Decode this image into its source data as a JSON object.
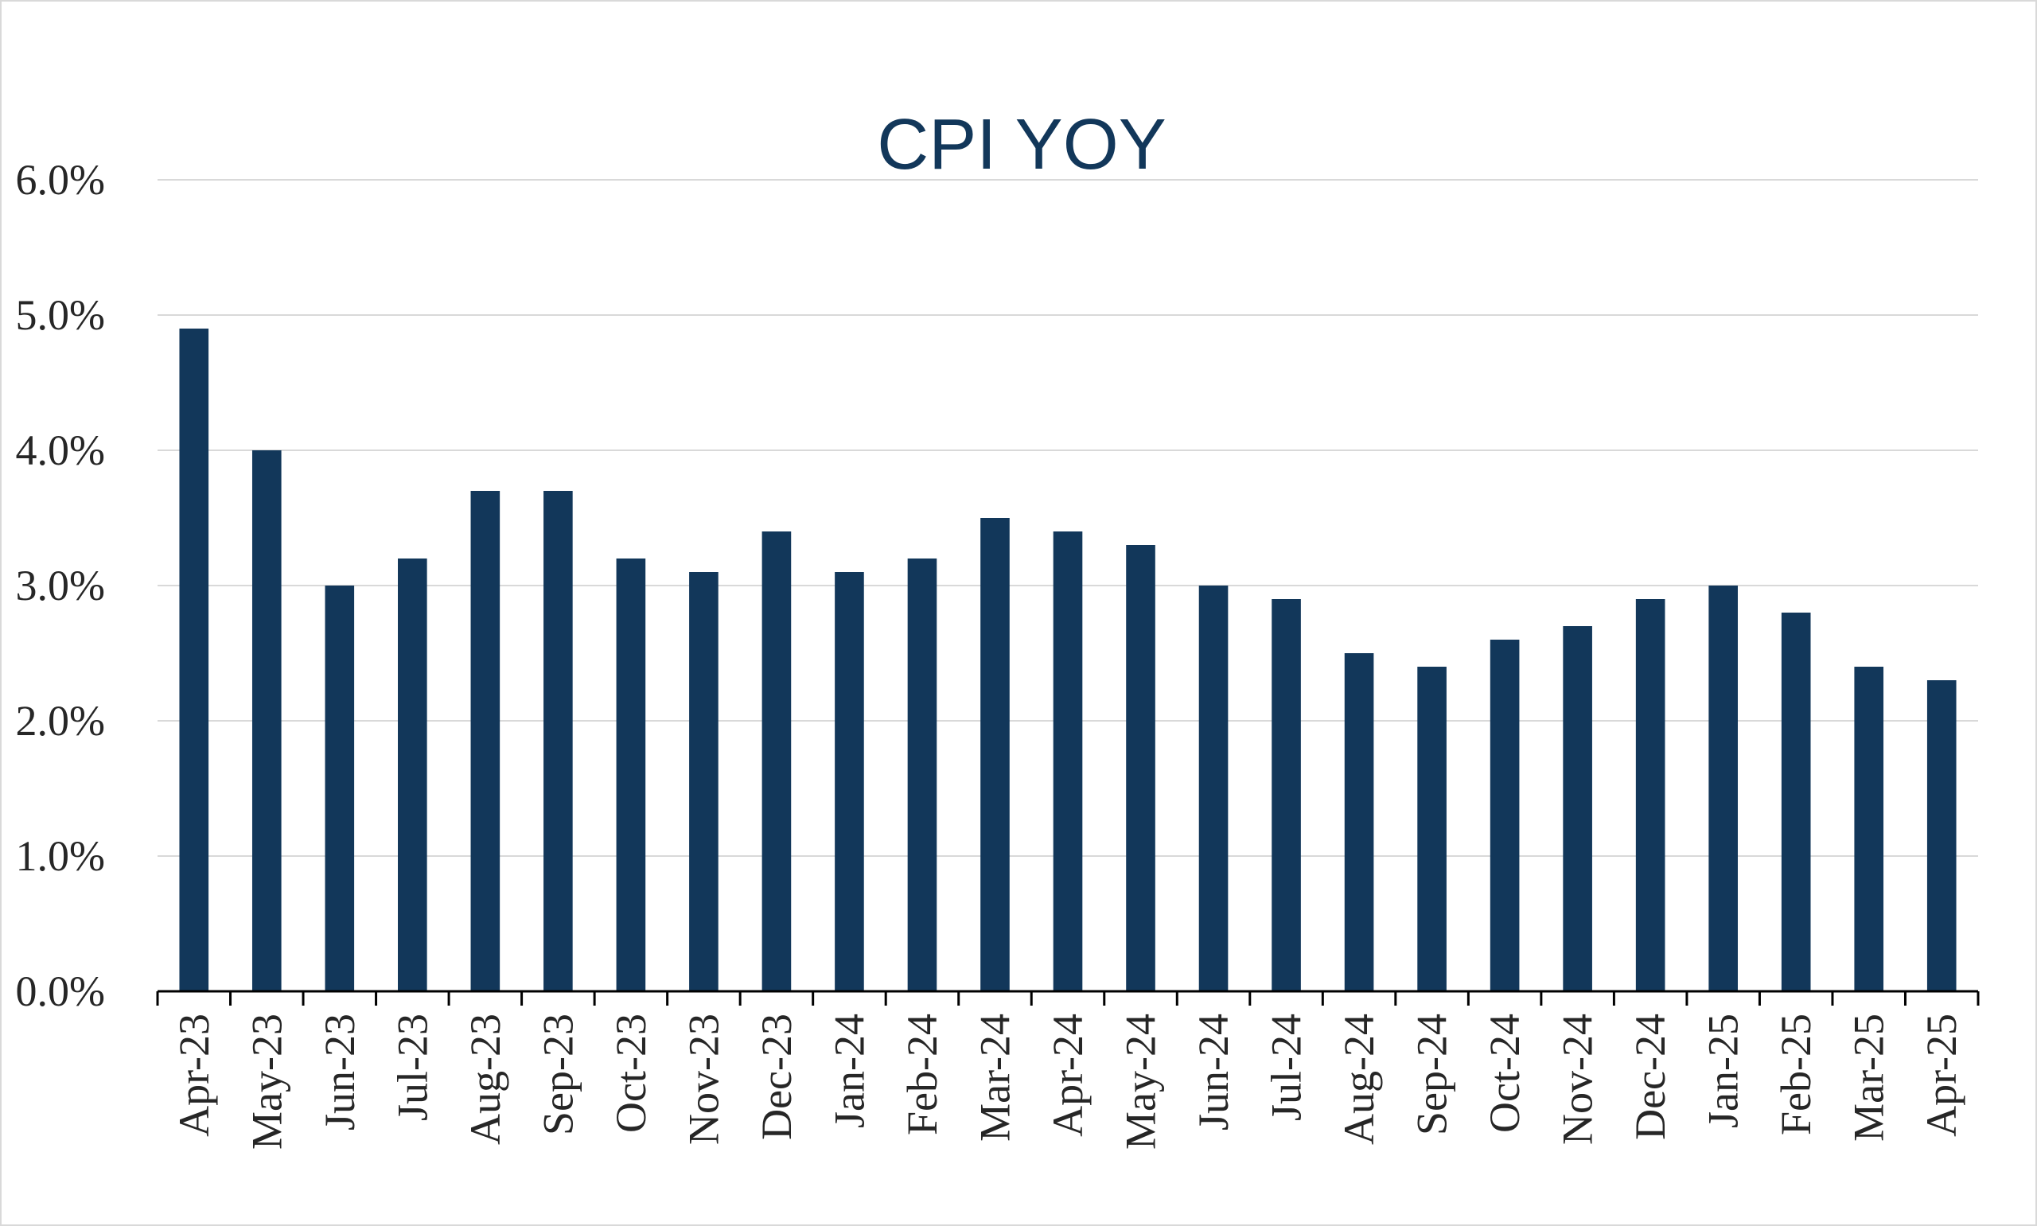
{
  "chart_data": {
    "type": "bar",
    "title": "CPI YOY",
    "xlabel": "",
    "ylabel": "",
    "categories": [
      "Apr-23",
      "May-23",
      "Jun-23",
      "Jul-23",
      "Aug-23",
      "Sep-23",
      "Oct-23",
      "Nov-23",
      "Dec-23",
      "Jan-24",
      "Feb-24",
      "Mar-24",
      "Apr-24",
      "May-24",
      "Jun-24",
      "Jul-24",
      "Aug-24",
      "Sep-24",
      "Oct-24",
      "Nov-24",
      "Dec-24",
      "Jan-25",
      "Feb-25",
      "Mar-25",
      "Apr-25"
    ],
    "values": [
      4.9,
      4.0,
      3.0,
      3.2,
      3.7,
      3.7,
      3.2,
      3.1,
      3.4,
      3.1,
      3.2,
      3.5,
      3.4,
      3.3,
      3.0,
      2.9,
      2.5,
      2.4,
      2.6,
      2.7,
      2.9,
      3.0,
      2.8,
      2.4,
      2.3
    ],
    "ylim": [
      0,
      6
    ],
    "y_ticks": [
      "0.0%",
      "1.0%",
      "2.0%",
      "3.0%",
      "4.0%",
      "5.0%",
      "6.0%"
    ],
    "grid": true,
    "legend": "none",
    "bar_color": "#12375a",
    "grid_color": "#d9d9d9",
    "axis_color": "#000000"
  }
}
